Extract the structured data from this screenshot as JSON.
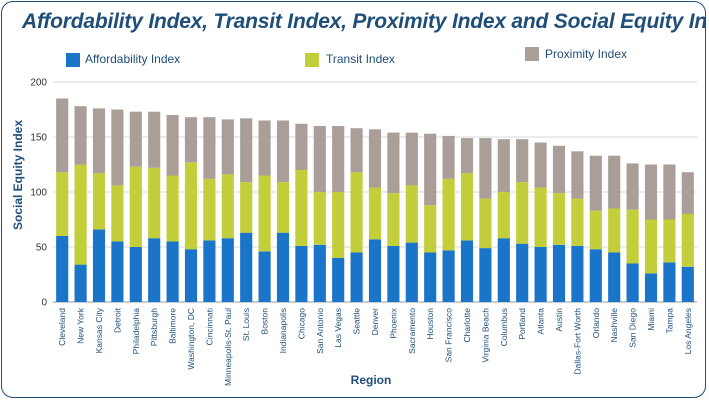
{
  "chart_data": {
    "type": "bar",
    "stacked": true,
    "title": "Affordability Index, Transit Index, Proximity Index and Social Equity Index",
    "xlabel": "Region",
    "ylabel": "Social Equity Index",
    "ylim": [
      0,
      200
    ],
    "yticks": [
      0,
      50,
      100,
      150,
      200
    ],
    "grid": true,
    "legend_placement": "top",
    "categories": [
      "Cleveland",
      "New York",
      "Kansas City",
      "Detroit",
      "Philadelphia",
      "Pittsburgh",
      "Baltimore",
      "Washington, DC",
      "Cincinnati",
      "Minneapolis-St. Paul",
      "St. Louis",
      "Boston",
      "Indianapolis",
      "Chicago",
      "San Antonio",
      "Las Vegas",
      "Seattle",
      "Denver",
      "Phoenix",
      "Sacramento",
      "Houston",
      "San Francisco",
      "Charlotte",
      "Virginia Beach",
      "Columbus",
      "Portland",
      "Atlanta",
      "Austin",
      "Dallas-Fort Worth",
      "Orlando",
      "Nashville",
      "San Diego",
      "Miami",
      "Tampa",
      "Los Angeles"
    ],
    "series": [
      {
        "name": "Affordability Index",
        "color": "#1a75c8",
        "values": [
          60,
          34,
          66,
          55,
          50,
          58,
          55,
          48,
          56,
          58,
          63,
          46,
          63,
          51,
          52,
          40,
          45,
          57,
          51,
          54,
          45,
          47,
          56,
          49,
          58,
          53,
          50,
          52,
          51,
          48,
          45,
          35,
          26,
          36,
          32
        ]
      },
      {
        "name": "Transit Index",
        "color": "#c3cf3a",
        "values": [
          58,
          91,
          51,
          51,
          73,
          64,
          60,
          79,
          56,
          58,
          46,
          69,
          46,
          69,
          48,
          60,
          73,
          47,
          48,
          52,
          43,
          65,
          61,
          45,
          42,
          56,
          54,
          47,
          43,
          35,
          40,
          49,
          49,
          39,
          48
        ]
      },
      {
        "name": "Proximity Index",
        "color": "#a99e98",
        "values": [
          67,
          53,
          59,
          69,
          50,
          51,
          55,
          41,
          56,
          50,
          58,
          50,
          56,
          42,
          60,
          60,
          40,
          53,
          55,
          48,
          65,
          39,
          32,
          55,
          48,
          39,
          41,
          43,
          43,
          50,
          48,
          42,
          50,
          50,
          38
        ]
      }
    ]
  }
}
